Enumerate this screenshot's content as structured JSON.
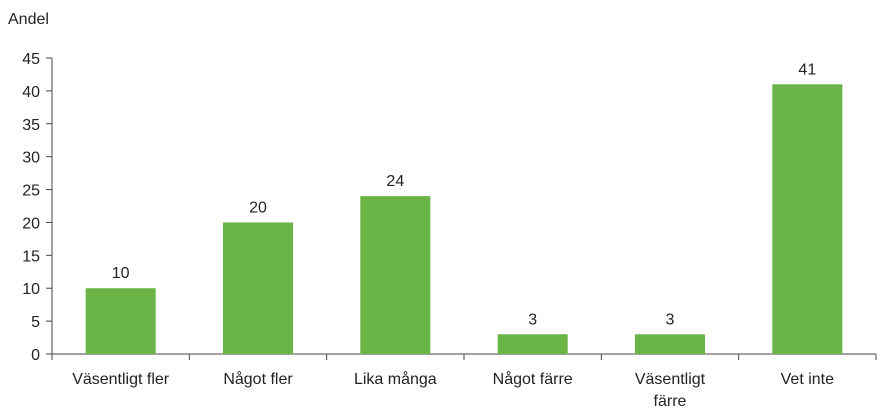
{
  "chart_data": {
    "type": "bar",
    "y_label": "Andel",
    "categories": [
      "Väsentligt fler",
      "Något fler",
      "Lika många",
      "Något färre",
      "Väsentligt färre",
      "Vet inte"
    ],
    "values": [
      10,
      20,
      24,
      3,
      3,
      41
    ],
    "color": "#6ab446",
    "ylim": [
      0,
      45
    ],
    "yticks": [
      0,
      5,
      10,
      15,
      20,
      25,
      30,
      35,
      40,
      45
    ],
    "grid": false
  }
}
